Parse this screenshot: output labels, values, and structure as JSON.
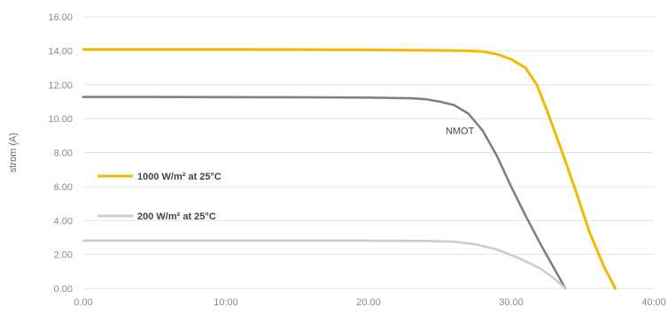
{
  "chart_data": {
    "type": "line",
    "title": "",
    "xlabel": "",
    "ylabel": "strom (A)",
    "xlim": [
      0,
      40
    ],
    "ylim": [
      0,
      16
    ],
    "grid": true,
    "x_ticks": [
      "0.00",
      "10:00",
      "20.00",
      "30.00",
      "40:00"
    ],
    "y_ticks": [
      "0.00",
      "2.00",
      "4.00",
      "6.00",
      "8.00",
      "10.00",
      "12.00",
      "14.00",
      "16.00"
    ],
    "annotations": [
      {
        "text": "NMOT",
        "x": 25.4,
        "y": 9.1
      }
    ],
    "series": [
      {
        "name": "1000 W/m² at 25°C",
        "color": "#f5b800",
        "points": [
          [
            0,
            14.08
          ],
          [
            5,
            14.08
          ],
          [
            10,
            14.08
          ],
          [
            15,
            14.07
          ],
          [
            20,
            14.05
          ],
          [
            25,
            14.02
          ],
          [
            27,
            14.0
          ],
          [
            28,
            13.95
          ],
          [
            29,
            13.8
          ],
          [
            30,
            13.5
          ],
          [
            31,
            13.0
          ],
          [
            31.8,
            12.0
          ],
          [
            32.5,
            10.5
          ],
          [
            33.5,
            8.2
          ],
          [
            34.5,
            5.8
          ],
          [
            35.5,
            3.3
          ],
          [
            36.5,
            1.3
          ],
          [
            37.3,
            0
          ]
        ],
        "show_in_legend": true
      },
      {
        "name": "NMOT",
        "color": "#808080",
        "points": [
          [
            0,
            11.28
          ],
          [
            5,
            11.28
          ],
          [
            10,
            11.27
          ],
          [
            15,
            11.26
          ],
          [
            20,
            11.24
          ],
          [
            23,
            11.2
          ],
          [
            24,
            11.15
          ],
          [
            25,
            11.0
          ],
          [
            26,
            10.8
          ],
          [
            27,
            10.3
          ],
          [
            28,
            9.3
          ],
          [
            29,
            7.8
          ],
          [
            30,
            6.0
          ],
          [
            31,
            4.3
          ],
          [
            32,
            2.7
          ],
          [
            33,
            1.2
          ],
          [
            33.8,
            0
          ]
        ],
        "show_in_legend": false
      },
      {
        "name": "200 W/m² at 25°C",
        "color": "#cccccc",
        "points": [
          [
            0,
            2.82
          ],
          [
            10,
            2.82
          ],
          [
            20,
            2.81
          ],
          [
            24,
            2.8
          ],
          [
            26,
            2.75
          ],
          [
            27.5,
            2.6
          ],
          [
            29,
            2.3
          ],
          [
            30.5,
            1.8
          ],
          [
            32,
            1.2
          ],
          [
            33,
            0.6
          ],
          [
            33.8,
            0
          ]
        ],
        "show_in_legend": true
      }
    ]
  }
}
